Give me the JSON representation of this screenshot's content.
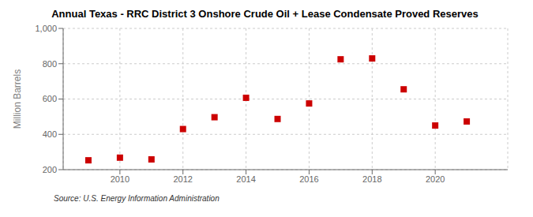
{
  "chart_data": {
    "type": "scatter",
    "title": "Annual Texas - RRC District 3 Onshore Crude Oil + Lease Condensate Proved Reserves",
    "ylabel": "Million Barrels",
    "annotation": "Source: U.S. Energy Information Administration",
    "x": [
      2009,
      2010,
      2011,
      2012,
      2013,
      2014,
      2015,
      2016,
      2017,
      2018,
      2019,
      2020,
      2021
    ],
    "values": [
      253,
      268,
      258,
      430,
      497,
      607,
      487,
      575,
      825,
      830,
      655,
      450,
      473
    ],
    "color": "#cc0000",
    "marker": "square",
    "xlim": [
      2008.2,
      2022.3
    ],
    "xticks": [
      2010,
      2012,
      2014,
      2016,
      2018,
      2020
    ],
    "ylim": [
      200,
      1000
    ],
    "yticks": [
      200,
      400,
      600,
      800,
      {
        "value": 1000,
        "label": "1,000"
      }
    ],
    "grid": true
  }
}
